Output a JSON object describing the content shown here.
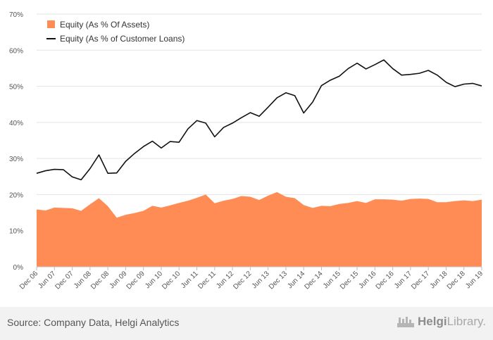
{
  "chart_data": {
    "type": "area",
    "x": [
      "Dec 06",
      "Mar 07",
      "Jun 07",
      "Sep 07",
      "Dec 07",
      "Mar 08",
      "Jun 08",
      "Sep 08",
      "Dec 08",
      "Mar 09",
      "Jun 09",
      "Sep 09",
      "Dec 09",
      "Mar 10",
      "Jun 10",
      "Sep 10",
      "Dec 10",
      "Mar 11",
      "Jun 11",
      "Sep 11",
      "Dec 11",
      "Mar 12",
      "Jun 12",
      "Sep 12",
      "Dec 12",
      "Mar 13",
      "Jun 13",
      "Sep 13",
      "Dec 13",
      "Mar 14",
      "Jun 14",
      "Sep 14",
      "Dec 14",
      "Mar 15",
      "Jun 15",
      "Sep 15",
      "Dec 15",
      "Mar 16",
      "Jun 16",
      "Sep 16",
      "Dec 16",
      "Mar 17",
      "Jun 17",
      "Sep 17",
      "Dec 17",
      "Mar 18",
      "Jun 18",
      "Sep 18",
      "Dec 18",
      "Mar 19",
      "Jun 19"
    ],
    "tick_labels": [
      "Dec 06",
      "Jun 07",
      "Dec 07",
      "Jun 08",
      "Dec 08",
      "Jun 09",
      "Dec 09",
      "Jun 10",
      "Dec 10",
      "Jun 11",
      "Dec 11",
      "Jun 12",
      "Dec 12",
      "Jun 13",
      "Dec 13",
      "Jun 14",
      "Dec 14",
      "Jun 15",
      "Dec 15",
      "Jun 16",
      "Dec 16",
      "Jun 17",
      "Dec 17",
      "Jun 18",
      "Dec 18",
      "Jun 19"
    ],
    "series": [
      {
        "name": "Equity (As % Of Assets)",
        "kind": "area",
        "color": "#ff8c55",
        "values": [
          15.9,
          15.6,
          16.4,
          16.3,
          16.2,
          15.5,
          17.3,
          19.0,
          16.8,
          13.6,
          14.4,
          14.9,
          15.5,
          16.9,
          16.4,
          17.0,
          17.7,
          18.3,
          19.1,
          20.0,
          17.6,
          18.3,
          18.8,
          19.6,
          19.4,
          18.5,
          19.7,
          20.7,
          19.4,
          19.0,
          17.1,
          16.3,
          16.9,
          16.8,
          17.4,
          17.7,
          18.2,
          17.7,
          18.7,
          18.7,
          18.6,
          18.3,
          18.8,
          18.9,
          18.8,
          17.9,
          17.9,
          18.2,
          18.4,
          18.2,
          18.6
        ]
      },
      {
        "name": "Equity (As % of Customer Loans)",
        "kind": "line",
        "color": "#111111",
        "values": [
          25.9,
          26.6,
          27.0,
          26.9,
          24.9,
          24.1,
          27.2,
          31.0,
          25.9,
          26.0,
          29.2,
          31.4,
          33.3,
          34.8,
          32.9,
          34.7,
          34.5,
          38.2,
          40.5,
          39.8,
          36.0,
          38.6,
          39.8,
          41.3,
          42.7,
          41.7,
          44.2,
          46.8,
          48.2,
          47.4,
          42.6,
          45.6,
          50.2,
          51.7,
          52.8,
          54.9,
          56.4,
          54.8,
          56.0,
          57.3,
          54.9,
          53.1,
          53.3,
          53.6,
          54.4,
          53.1,
          51.1,
          49.9,
          50.6,
          50.8,
          50.1
        ]
      }
    ],
    "ylim": [
      0,
      70
    ],
    "yticks": [
      "0%",
      "10%",
      "20%",
      "30%",
      "40%",
      "50%",
      "60%",
      "70%"
    ],
    "grid": true,
    "legend_placement": "top-left"
  },
  "footer": {
    "source": "Source: Company Data, Helgi Analytics",
    "brand_bold": "Helgi",
    "brand_light": "Library."
  }
}
